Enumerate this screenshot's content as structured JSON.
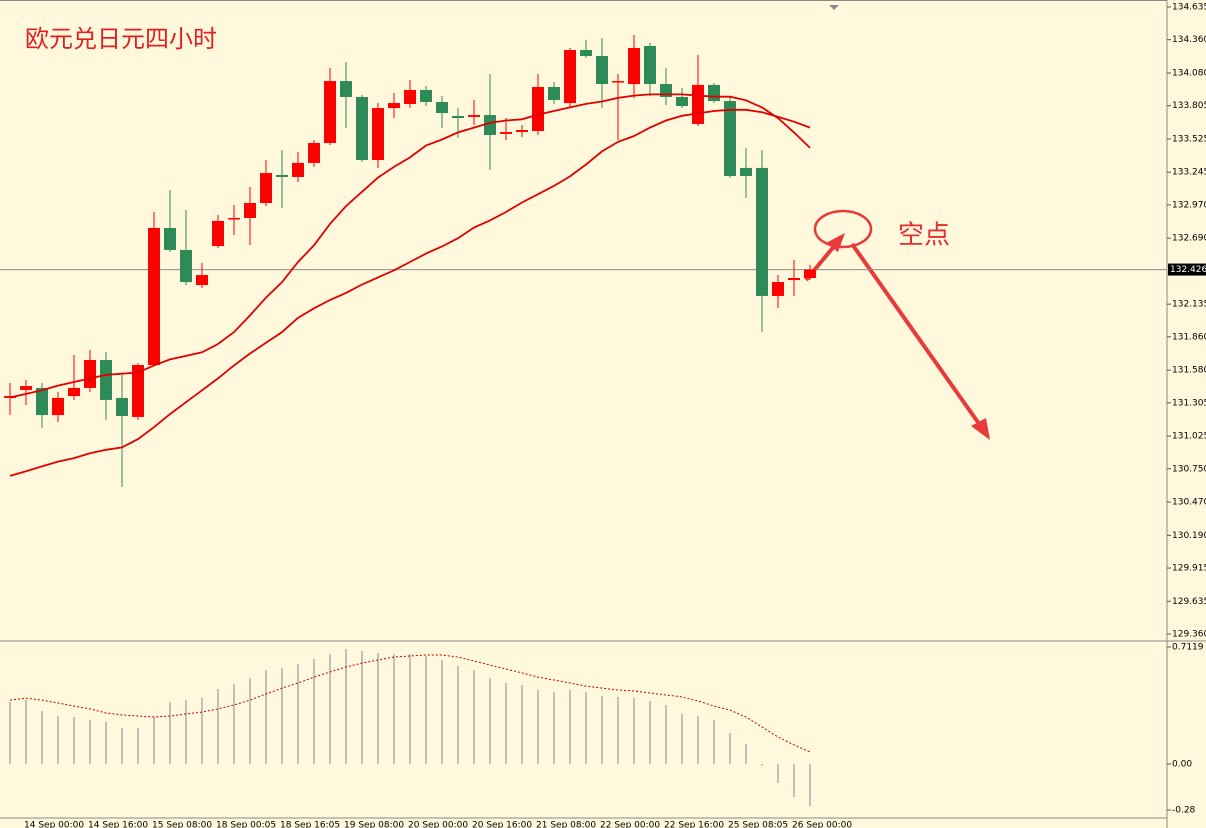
{
  "chart_data": [
    {
      "type": "candlestick",
      "title": "欧元兑日元四小时",
      "annotation": "空点",
      "categories": [
        null,
        "14 Sep 00:00",
        null,
        null,
        null,
        "14 Sep 16:00",
        null,
        null,
        null,
        "15 Sep 08:00",
        null,
        null,
        null,
        "18 Sep 00:05",
        null,
        null,
        null,
        "18 Sep 16:05",
        null,
        null,
        null,
        "19 Sep 08:00",
        null,
        null,
        null,
        "20 Sep 00:00",
        null,
        null,
        null,
        "20 Sep 16:00",
        null,
        null,
        null,
        "21 Sep 08:00",
        null,
        null,
        null,
        "22 Sep 00:00",
        null,
        null,
        null,
        "22 Sep 16:00",
        null,
        null,
        null,
        "25 Sep 08:05",
        null,
        null,
        null,
        "26 Sep 00:00",
        null
      ],
      "open": [
        131.346,
        131.413,
        131.43,
        131.202,
        131.362,
        131.43,
        131.665,
        131.346,
        131.186,
        131.623,
        132.776,
        132.591,
        132.296,
        132.624,
        132.851,
        132.86,
        132.986,
        133.222,
        133.205,
        133.323,
        133.491,
        134.012,
        133.878,
        133.348,
        133.785,
        133.819,
        133.937,
        133.836,
        133.718,
        133.71,
        133.726,
        133.567,
        133.583,
        133.592,
        133.962,
        133.827,
        134.273,
        134.223,
        134.004,
        133.987,
        134.307,
        133.987,
        133.878,
        133.651,
        133.979,
        133.844,
        133.281,
        133.281,
        132.204,
        132.338,
        132.355
      ],
      "high": [
        131.472,
        131.497,
        131.472,
        131.396,
        131.707,
        131.749,
        131.733,
        131.539,
        131.64,
        132.91,
        133.095,
        132.927,
        132.481,
        132.885,
        132.969,
        133.121,
        133.348,
        133.432,
        133.415,
        133.516,
        134.122,
        134.172,
        133.895,
        133.827,
        133.911,
        134.021,
        133.97,
        133.886,
        133.785,
        133.853,
        134.071,
        133.701,
        133.642,
        134.071,
        134.004,
        134.29,
        134.357,
        134.374,
        134.071,
        134.399,
        134.332,
        134.122,
        133.954,
        134.231,
        133.996,
        133.886,
        133.449,
        133.432,
        132.38,
        132.507,
        132.464
      ],
      "low": [
        131.202,
        131.287,
        131.093,
        131.144,
        131.329,
        131.396,
        131.16,
        130.597,
        131.16,
        131.615,
        132.574,
        132.296,
        132.271,
        132.607,
        132.717,
        132.633,
        132.961,
        132.944,
        133.163,
        133.289,
        133.474,
        133.617,
        133.331,
        133.281,
        133.701,
        133.785,
        133.802,
        133.617,
        133.533,
        133.642,
        133.264,
        133.516,
        133.541,
        133.558,
        133.819,
        133.785,
        134.206,
        133.785,
        133.516,
        133.869,
        133.886,
        133.811,
        133.785,
        133.634,
        133.827,
        133.196,
        133.028,
        131.901,
        132.103,
        132.204,
        132.338
      ],
      "close": [
        131.362,
        131.446,
        131.202,
        131.346,
        131.43,
        131.665,
        131.329,
        131.194,
        131.623,
        132.776,
        132.591,
        132.321,
        132.38,
        132.835,
        132.86,
        132.986,
        133.238,
        133.205,
        133.323,
        133.491,
        134.012,
        133.878,
        133.348,
        133.785,
        133.827,
        133.937,
        133.836,
        133.743,
        133.701,
        133.726,
        133.558,
        133.583,
        133.6,
        133.962,
        133.853,
        134.273,
        134.223,
        133.987,
        134.012,
        134.29,
        133.987,
        133.878,
        133.802,
        133.979,
        133.844,
        133.213,
        133.213,
        132.204,
        132.321,
        132.355,
        132.426
      ],
      "up_color": "#ff0000",
      "down_color": "#2e8b57",
      "lines": [
        {
          "color": "#e00000",
          "values": [
            131.35,
            131.38,
            131.41,
            131.45,
            131.48,
            131.51,
            131.54,
            131.55,
            131.56,
            131.62,
            131.67,
            131.7,
            131.73,
            131.8,
            131.9,
            132.04,
            132.19,
            132.32,
            132.49,
            132.63,
            132.81,
            132.96,
            133.08,
            133.2,
            133.29,
            133.37,
            133.47,
            133.52,
            133.58,
            133.62,
            133.66,
            133.68,
            133.69,
            133.73,
            133.76,
            133.79,
            133.82,
            133.84,
            133.87,
            133.89,
            133.9,
            133.9,
            133.9,
            133.89,
            133.88,
            133.88,
            133.85,
            133.79,
            133.7,
            133.58,
            133.45
          ]
        },
        {
          "color": "#e00000",
          "values": [
            130.69,
            130.73,
            130.77,
            130.81,
            130.84,
            130.88,
            130.91,
            130.93,
            131.0,
            131.1,
            131.21,
            131.31,
            131.41,
            131.51,
            131.62,
            131.72,
            131.81,
            131.9,
            132.02,
            132.1,
            132.17,
            132.23,
            132.3,
            132.36,
            132.42,
            132.49,
            132.56,
            132.62,
            132.69,
            132.78,
            132.84,
            132.91,
            132.99,
            133.06,
            133.13,
            133.21,
            133.31,
            133.42,
            133.5,
            133.55,
            133.62,
            133.68,
            133.72,
            133.74,
            133.76,
            133.77,
            133.77,
            133.75,
            133.71,
            133.67,
            133.62
          ]
        }
      ],
      "ylim": [
        129.36,
        134.635
      ],
      "yticks": [
        134.635,
        {
          "value": 134.36,
          "label": "134.360"
        },
        {
          "value": 134.08,
          "label": "134.080"
        },
        133.805,
        133.525,
        133.245,
        {
          "value": 132.97,
          "label": "132.970"
        },
        {
          "value": 132.69,
          "label": "132.690"
        },
        132.135,
        {
          "value": 131.86,
          "label": "131.860"
        },
        {
          "value": 131.58,
          "label": "131.580"
        },
        131.305,
        131.025,
        {
          "value": 130.75,
          "label": "130.750"
        },
        {
          "value": 130.47,
          "label": "130.470"
        },
        {
          "value": 130.19,
          "label": "130.190"
        },
        129.915,
        129.635,
        {
          "value": 129.36,
          "label": "129.360"
        }
      ],
      "last_price": 132.426
    },
    {
      "type": "bar",
      "color": "#c0c0c0",
      "values": [
        0.377,
        0.389,
        0.322,
        0.292,
        0.286,
        0.268,
        0.255,
        0.219,
        0.219,
        0.286,
        0.377,
        0.389,
        0.401,
        0.456,
        0.487,
        0.523,
        0.572,
        0.584,
        0.608,
        0.639,
        0.669,
        0.7,
        0.687,
        0.675,
        0.669,
        0.669,
        0.657,
        0.633,
        0.596,
        0.572,
        0.523,
        0.493,
        0.481,
        0.45,
        0.438,
        0.45,
        0.438,
        0.414,
        0.408,
        0.401,
        0.383,
        0.359,
        0.304,
        0.292,
        0.268,
        0.189,
        0.122,
        -0.01,
        -0.116,
        -0.201,
        -0.255
      ],
      "line": {
        "color": "#c00000",
        "values": [
          0.389,
          0.401,
          0.389,
          0.371,
          0.353,
          0.335,
          0.31,
          0.298,
          0.292,
          0.286,
          0.292,
          0.304,
          0.316,
          0.335,
          0.359,
          0.389,
          0.426,
          0.462,
          0.493,
          0.529,
          0.56,
          0.59,
          0.614,
          0.633,
          0.651,
          0.657,
          0.663,
          0.663,
          0.651,
          0.627,
          0.602,
          0.578,
          0.554,
          0.529,
          0.511,
          0.493,
          0.474,
          0.462,
          0.45,
          0.444,
          0.432,
          0.42,
          0.408,
          0.383,
          0.353,
          0.328,
          0.286,
          0.225,
          0.164,
          0.116,
          0.073
        ]
      },
      "ylim": [
        -0.28,
        0.7119
      ],
      "yticks": [
        0.7119,
        {
          "value": 0,
          "label": "0.00"
        },
        -0.28
      ]
    }
  ]
}
